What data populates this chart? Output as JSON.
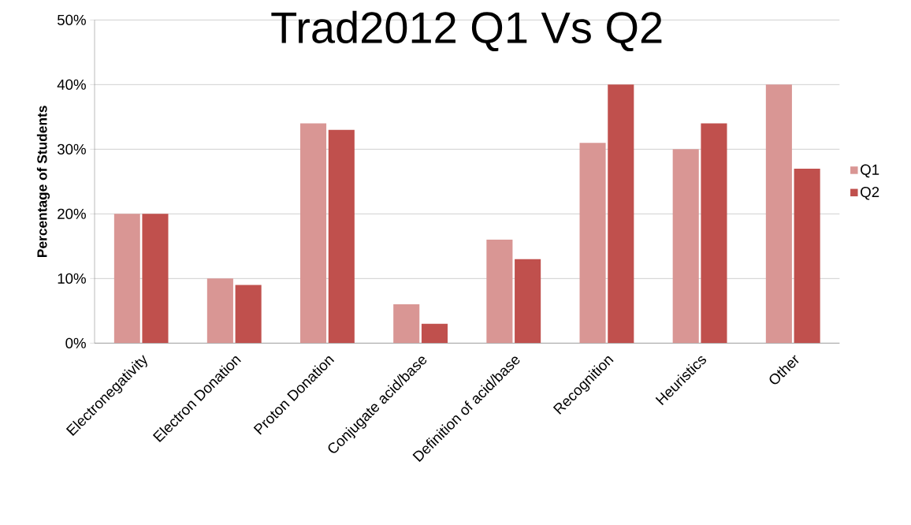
{
  "chart_data": {
    "type": "bar",
    "title": "Trad2012 Q1 Vs Q2",
    "ylabel": "Percentage of Students",
    "categories": [
      "Electronegativity",
      "Electron Donation",
      "Proton Donation",
      "Conjugate acid/base",
      "Definition of acid/base",
      "Recognition",
      "Heuristics",
      "Other"
    ],
    "series": [
      {
        "name": "Q1",
        "color": "#d99694",
        "values": [
          20,
          10,
          34,
          6,
          16,
          31,
          30,
          40
        ]
      },
      {
        "name": "Q2",
        "color": "#c0504d",
        "values": [
          20,
          9,
          33,
          3,
          13,
          40,
          34,
          27
        ]
      }
    ],
    "ylim": [
      0,
      50
    ],
    "yticks": [
      {
        "value": 0,
        "label": "0%"
      },
      {
        "value": 10,
        "label": "10%"
      },
      {
        "value": 20,
        "label": "20%"
      },
      {
        "value": 30,
        "label": "30%"
      },
      {
        "value": 40,
        "label": "40%"
      },
      {
        "value": 50,
        "label": "50%"
      }
    ],
    "grid": "y",
    "legend": "right"
  }
}
